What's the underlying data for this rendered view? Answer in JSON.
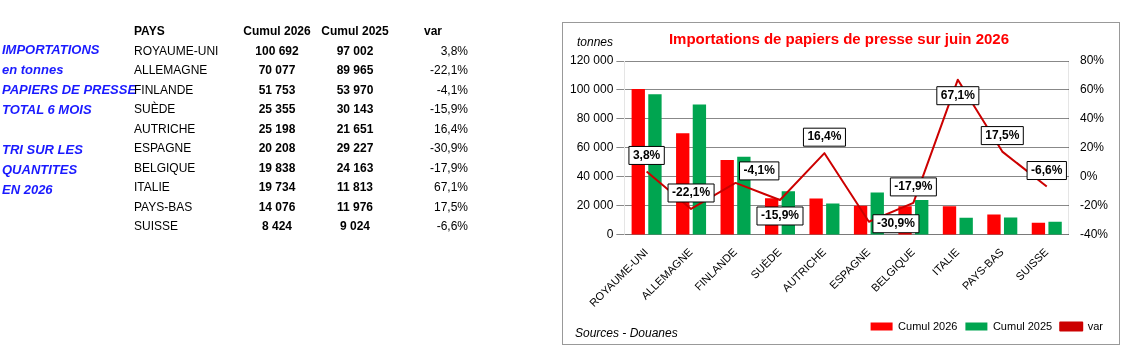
{
  "chart_data": [
    {
      "type": "other",
      "annotations": [
        "IMPORTATIONS\nen tonnes\nPAPIERS DE PRESSE\nTOTAL 6 MOIS",
        "TRI SUR LES\nQUANTITES\nEN 2026",
        "PAYS",
        "Cumul 2026",
        "Cumul 2025",
        "var",
        "ROYAUME-UNI",
        "100 692",
        "97 002",
        "3,8%",
        "ALLEMAGNE",
        "70 077",
        "89 965",
        "-22,1%",
        "FINLANDE",
        "51 753",
        "53 970",
        "-4,1%",
        "SUÈDE",
        "25 355",
        "30 143",
        "-15,9%",
        "AUTRICHE",
        "25 198",
        "21 651",
        "16,4%",
        "ESPAGNE",
        "20 208",
        "29 227",
        "-30,9%",
        "BELGIQUE",
        "19 838",
        "24 163",
        "-17,9%",
        "ITALIE",
        "19 734",
        "11 813",
        "67,1%",
        "PAYS-BAS",
        "14 076",
        "11 976",
        "17,5%",
        "SUISSE",
        "8 424",
        "9 024",
        "-6,6%"
      ]
    },
    {
      "type": "bar",
      "title": "Importations de papiers de presse sur juin 2026",
      "ylabel": "tonnes",
      "categories": [
        "ROYAUME-UNI",
        "ALLEMAGNE",
        "FINLANDE",
        "SUÈDE",
        "AUTRICHE",
        "ESPAGNE",
        "BELGIQUE",
        "ITALIE",
        "PAYS-BAS",
        "SUISSE"
      ],
      "series": [
        {
          "name": "Cumul 2026",
          "type": "bar",
          "color": "#ff0000",
          "values": [
            100692,
            70077,
            51753,
            25355,
            25198,
            20208,
            19838,
            19734,
            14076,
            8424
          ]
        },
        {
          "name": "Cumul 2025",
          "type": "bar",
          "color": "#00a550",
          "values": [
            97002,
            89965,
            53970,
            30143,
            21651,
            29227,
            24163,
            11813,
            11976,
            9024
          ]
        },
        {
          "name": "var",
          "type": "line",
          "axis": "y2",
          "color": "#cc0000",
          "values": [
            3.8,
            -22.1,
            -4.1,
            -15.9,
            16.4,
            -30.9,
            -17.9,
            67.1,
            17.5,
            -6.6
          ],
          "value_labels": [
            "3,8%",
            "-22,1%",
            "-4,1%",
            "-15,9%",
            "16,4%",
            "-30,9%",
            "-17,9%",
            "67,1%",
            "17,5%",
            "-6,6%"
          ]
        }
      ],
      "ylim": [
        0,
        120000
      ],
      "yticks": [
        0,
        {
          "value": 20000,
          "label": "20 000"
        },
        {
          "value": 40000,
          "label": "40 000"
        },
        {
          "value": 60000,
          "label": "60 000"
        },
        {
          "value": 80000,
          "label": "80 000"
        },
        {
          "value": 100000,
          "label": "100 000"
        },
        {
          "value": 120000,
          "label": "120 000"
        }
      ],
      "y2lim": [
        -40,
        80
      ],
      "y2ticks": [
        {
          "value": -40,
          "label": "-40%"
        },
        {
          "value": -20,
          "label": "-20%"
        },
        {
          "value": 0,
          "label": "0%"
        },
        {
          "value": 20,
          "label": "20%"
        },
        {
          "value": 40,
          "label": "40%"
        },
        {
          "value": 60,
          "label": "60%"
        },
        {
          "value": 80,
          "label": "80%"
        }
      ],
      "grid": "y",
      "legend": "bottom right",
      "marker": "none",
      "annotations": [
        "Sources - Douanes"
      ]
    }
  ]
}
